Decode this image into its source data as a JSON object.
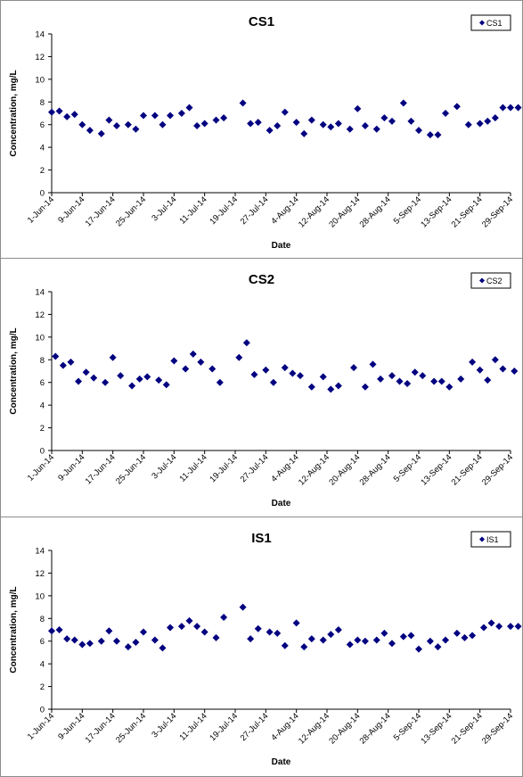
{
  "chart_data": [
    {
      "type": "scatter",
      "title": "CS1",
      "xlabel": "Date",
      "ylabel": "Concentration, mg/L",
      "ylim": [
        0,
        14
      ],
      "yticks": [
        0,
        2,
        4,
        6,
        8,
        10,
        12,
        14
      ],
      "xlim": [
        "1-Jun-14",
        "29-Sep-14"
      ],
      "xticks": [
        "1-Jun-14",
        "9-Jun-14",
        "17-Jun-14",
        "25-Jun-14",
        "3-Jul-14",
        "11-Jul-14",
        "19-Jul-14",
        "27-Jul-14",
        "4-Aug-14",
        "12-Aug-14",
        "20-Aug-14",
        "28-Aug-14",
        "5-Sep-14",
        "13-Sep-14",
        "21-Sep-14",
        "29-Sep-14"
      ],
      "legend": "top-right",
      "series": [
        {
          "name": "CS1",
          "color": "#000080",
          "x": [
            "1-Jun-14",
            "3-Jun-14",
            "5-Jun-14",
            "7-Jun-14",
            "9-Jun-14",
            "11-Jun-14",
            "14-Jun-14",
            "16-Jun-14",
            "18-Jun-14",
            "21-Jun-14",
            "23-Jun-14",
            "25-Jun-14",
            "28-Jun-14",
            "30-Jun-14",
            "2-Jul-14",
            "5-Jul-14",
            "7-Jul-14",
            "9-Jul-14",
            "11-Jul-14",
            "14-Jul-14",
            "16-Jul-14",
            "21-Jul-14",
            "23-Jul-14",
            "25-Jul-14",
            "28-Jul-14",
            "30-Jul-14",
            "1-Aug-14",
            "4-Aug-14",
            "6-Aug-14",
            "8-Aug-14",
            "11-Aug-14",
            "13-Aug-14",
            "15-Aug-14",
            "18-Aug-14",
            "20-Aug-14",
            "22-Aug-14",
            "25-Aug-14",
            "27-Aug-14",
            "29-Aug-14",
            "1-Sep-14",
            "3-Sep-14",
            "5-Sep-14",
            "8-Sep-14",
            "10-Sep-14",
            "12-Sep-14",
            "15-Sep-14",
            "18-Sep-14",
            "21-Sep-14",
            "23-Sep-14",
            "25-Sep-14",
            "27-Sep-14",
            "29-Sep-14",
            "1-Oct-14"
          ],
          "y": [
            7.1,
            7.2,
            6.7,
            6.9,
            6.0,
            5.5,
            5.2,
            6.4,
            5.9,
            6.0,
            5.6,
            6.8,
            6.8,
            6.0,
            6.8,
            7.0,
            7.5,
            5.9,
            6.1,
            6.4,
            6.6,
            7.9,
            6.1,
            6.2,
            5.5,
            5.9,
            7.1,
            6.2,
            5.2,
            6.4,
            6.0,
            5.8,
            6.1,
            5.6,
            7.4,
            5.9,
            5.6,
            6.6,
            6.3,
            7.9,
            6.3,
            5.5,
            5.1,
            5.1,
            7.0,
            7.6,
            6.0,
            6.1,
            6.3,
            6.6,
            7.5,
            7.5,
            7.5
          ]
        }
      ]
    },
    {
      "type": "scatter",
      "title": "CS2",
      "xlabel": "Date",
      "ylabel": "Concentration, mg/L",
      "ylim": [
        0,
        14
      ],
      "yticks": [
        0,
        2,
        4,
        6,
        8,
        10,
        12,
        14
      ],
      "xlim": [
        "1-Jun-14",
        "29-Sep-14"
      ],
      "xticks": [
        "1-Jun-14",
        "9-Jun-14",
        "17-Jun-14",
        "25-Jun-14",
        "3-Jul-14",
        "11-Jul-14",
        "19-Jul-14",
        "27-Jul-14",
        "4-Aug-14",
        "12-Aug-14",
        "20-Aug-14",
        "28-Aug-14",
        "5-Sep-14",
        "13-Sep-14",
        "21-Sep-14",
        "29-Sep-14"
      ],
      "legend": "top-right",
      "series": [
        {
          "name": "CS2",
          "color": "#000080",
          "x": [
            "2-Jun-14",
            "4-Jun-14",
            "6-Jun-14",
            "8-Jun-14",
            "10-Jun-14",
            "12-Jun-14",
            "15-Jun-14",
            "17-Jun-14",
            "19-Jun-14",
            "22-Jun-14",
            "24-Jun-14",
            "26-Jun-14",
            "29-Jun-14",
            "1-Jul-14",
            "3-Jul-14",
            "6-Jul-14",
            "8-Jul-14",
            "10-Jul-14",
            "13-Jul-14",
            "15-Jul-14",
            "20-Jul-14",
            "22-Jul-14",
            "24-Jul-14",
            "27-Jul-14",
            "29-Jul-14",
            "1-Aug-14",
            "3-Aug-14",
            "5-Aug-14",
            "8-Aug-14",
            "11-Aug-14",
            "13-Aug-14",
            "15-Aug-14",
            "19-Aug-14",
            "22-Aug-14",
            "24-Aug-14",
            "26-Aug-14",
            "29-Aug-14",
            "31-Aug-14",
            "2-Sep-14",
            "4-Sep-14",
            "6-Sep-14",
            "9-Sep-14",
            "11-Sep-14",
            "13-Sep-14",
            "16-Sep-14",
            "19-Sep-14",
            "21-Sep-14",
            "23-Sep-14",
            "25-Sep-14",
            "27-Sep-14",
            "30-Sep-14"
          ],
          "y": [
            8.3,
            7.5,
            7.8,
            6.1,
            6.9,
            6.4,
            6.0,
            8.2,
            6.6,
            5.7,
            6.3,
            6.5,
            6.2,
            5.8,
            7.9,
            7.2,
            8.5,
            7.8,
            7.2,
            6.0,
            8.2,
            9.5,
            6.7,
            7.1,
            6.0,
            7.3,
            6.8,
            6.6,
            5.6,
            6.5,
            5.4,
            5.7,
            7.3,
            5.6,
            7.6,
            6.3,
            6.6,
            6.1,
            5.9,
            6.9,
            6.6,
            6.1,
            6.1,
            5.6,
            6.3,
            7.8,
            7.1,
            6.2,
            8.0,
            7.2,
            7.0
          ]
        }
      ]
    },
    {
      "type": "scatter",
      "title": "IS1",
      "xlabel": "Date",
      "ylabel": "Concentration, mg/L",
      "ylim": [
        0,
        14
      ],
      "yticks": [
        0,
        2,
        4,
        6,
        8,
        10,
        12,
        14
      ],
      "xlim": [
        "1-Jun-14",
        "29-Sep-14"
      ],
      "xticks": [
        "1-Jun-14",
        "9-Jun-14",
        "17-Jun-14",
        "25-Jun-14",
        "3-Jul-14",
        "11-Jul-14",
        "19-Jul-14",
        "27-Jul-14",
        "4-Aug-14",
        "12-Aug-14",
        "20-Aug-14",
        "28-Aug-14",
        "5-Sep-14",
        "13-Sep-14",
        "21-Sep-14",
        "29-Sep-14"
      ],
      "legend": "top-right",
      "series": [
        {
          "name": "IS1",
          "color": "#000080",
          "x": [
            "1-Jun-14",
            "3-Jun-14",
            "5-Jun-14",
            "7-Jun-14",
            "9-Jun-14",
            "11-Jun-14",
            "14-Jun-14",
            "16-Jun-14",
            "18-Jun-14",
            "21-Jun-14",
            "23-Jun-14",
            "25-Jun-14",
            "28-Jun-14",
            "30-Jun-14",
            "2-Jul-14",
            "5-Jul-14",
            "7-Jul-14",
            "9-Jul-14",
            "11-Jul-14",
            "14-Jul-14",
            "16-Jul-14",
            "21-Jul-14",
            "23-Jul-14",
            "25-Jul-14",
            "28-Jul-14",
            "30-Jul-14",
            "1-Aug-14",
            "4-Aug-14",
            "6-Aug-14",
            "8-Aug-14",
            "11-Aug-14",
            "13-Aug-14",
            "15-Aug-14",
            "18-Aug-14",
            "20-Aug-14",
            "22-Aug-14",
            "25-Aug-14",
            "27-Aug-14",
            "29-Aug-14",
            "1-Sep-14",
            "3-Sep-14",
            "5-Sep-14",
            "8-Sep-14",
            "10-Sep-14",
            "12-Sep-14",
            "15-Sep-14",
            "17-Sep-14",
            "19-Sep-14",
            "22-Sep-14",
            "24-Sep-14",
            "26-Sep-14",
            "29-Sep-14",
            "1-Oct-14"
          ],
          "y": [
            6.9,
            7.0,
            6.2,
            6.1,
            5.7,
            5.8,
            6.0,
            6.9,
            6.0,
            5.5,
            5.9,
            6.8,
            6.1,
            5.4,
            7.2,
            7.3,
            7.8,
            7.3,
            6.8,
            6.3,
            8.1,
            9.0,
            6.2,
            7.1,
            6.8,
            6.7,
            5.6,
            7.6,
            5.5,
            6.2,
            6.1,
            6.6,
            7.0,
            5.7,
            6.1,
            6.0,
            6.1,
            6.7,
            5.8,
            6.4,
            6.5,
            5.3,
            6.0,
            5.5,
            6.1,
            6.7,
            6.3,
            6.5,
            7.2,
            7.6,
            7.3,
            7.3,
            7.3
          ]
        }
      ]
    }
  ]
}
